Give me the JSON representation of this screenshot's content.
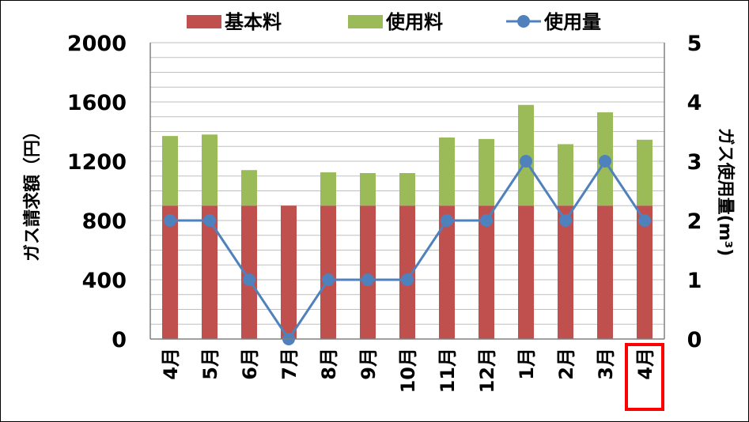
{
  "chart_data": {
    "type": "bar",
    "stacked": true,
    "categories": [
      "4月",
      "5月",
      "6月",
      "7月",
      "8月",
      "9月",
      "10月",
      "11月",
      "12月",
      "1月",
      "2月",
      "3月",
      "4月"
    ],
    "series": [
      {
        "name": "基本料",
        "type": "bar",
        "axis": "left",
        "color": "#c0504d",
        "values": [
          900,
          900,
          900,
          900,
          900,
          900,
          900,
          900,
          900,
          900,
          900,
          900,
          900
        ]
      },
      {
        "name": "使用料",
        "type": "bar",
        "axis": "left",
        "color": "#9bbb59",
        "values": [
          470,
          480,
          240,
          0,
          225,
          220,
          220,
          460,
          450,
          680,
          415,
          630,
          445
        ]
      },
      {
        "name": "使用量",
        "type": "line",
        "axis": "right",
        "color": "#4f81bd",
        "values": [
          2,
          2,
          1,
          0,
          1,
          1,
          1,
          2,
          2,
          3,
          2,
          3,
          2
        ]
      }
    ],
    "ylabel": "ガス請求額（円）",
    "y2label": "ガス使用量(m³)",
    "ylim": [
      0,
      2000
    ],
    "yticks": [
      "0",
      "400",
      "800",
      "1200",
      "1600",
      "2000"
    ],
    "y2lim": [
      0,
      5
    ],
    "y2ticks": [
      "0",
      "1",
      "2",
      "3",
      "4",
      "5"
    ],
    "grid": true,
    "legend_position": "top",
    "highlighted_category_index": 12,
    "highlight_color": "#ff0000"
  }
}
